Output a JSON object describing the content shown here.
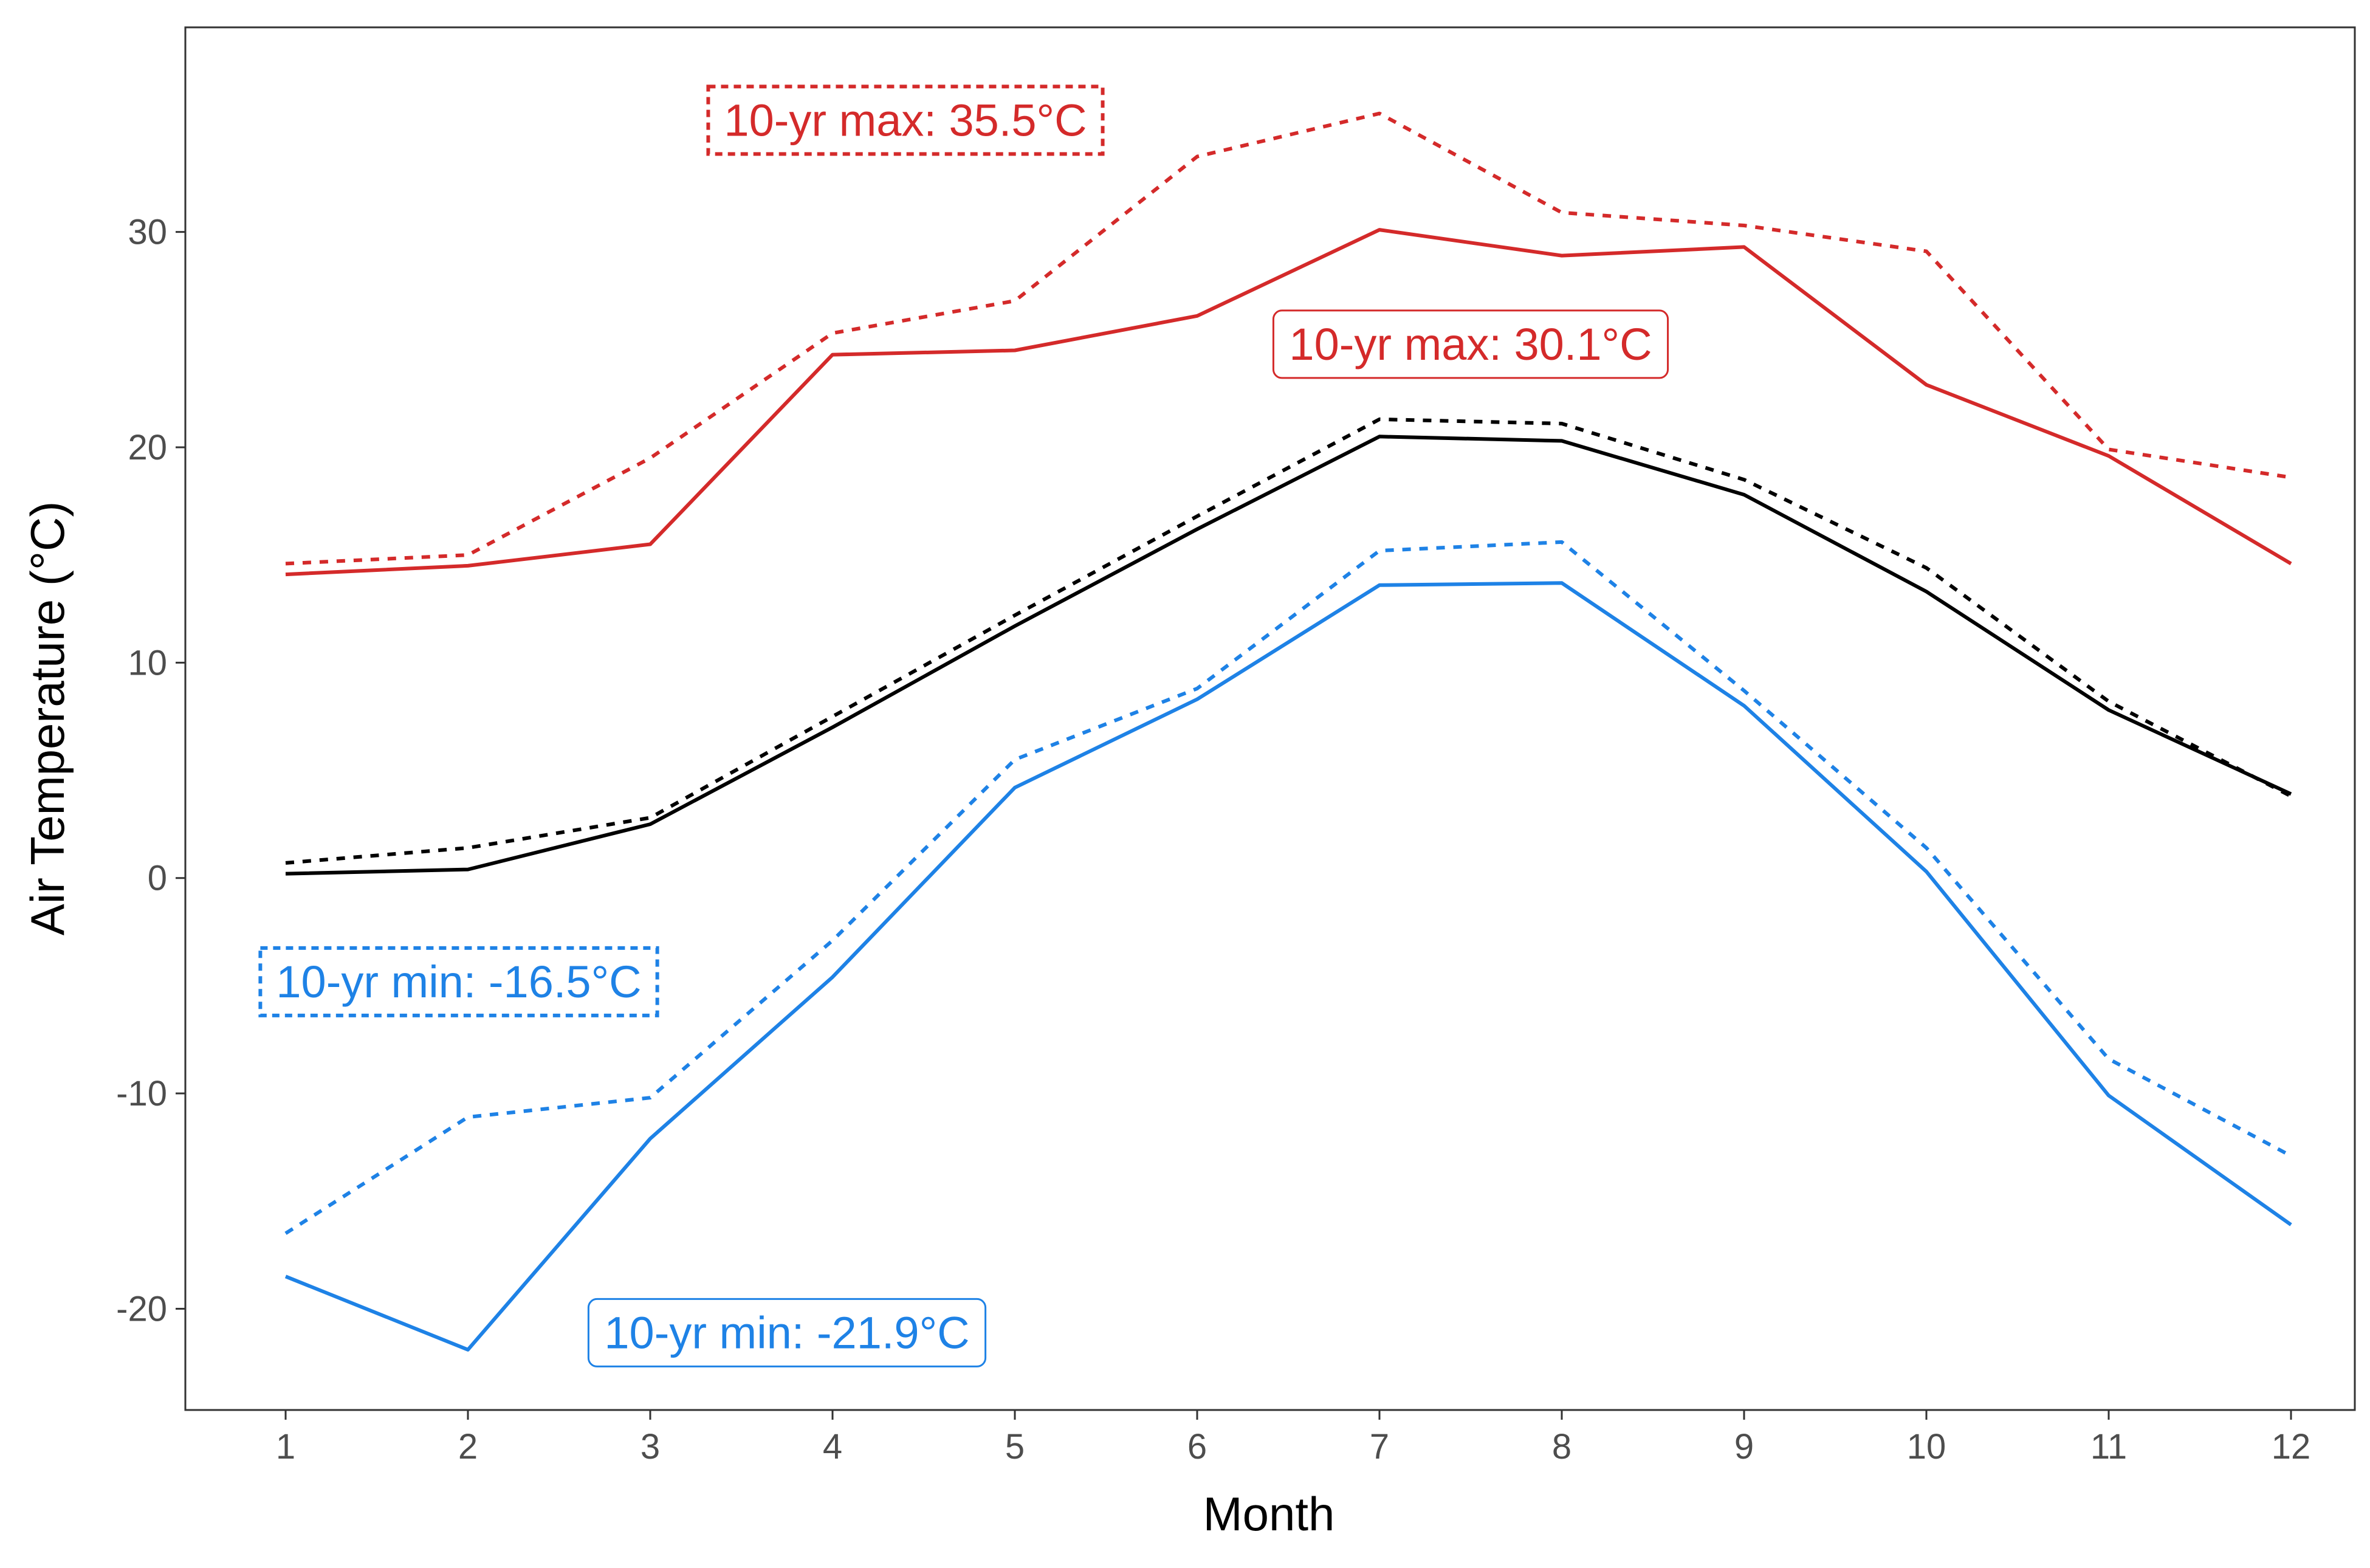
{
  "chart_data": {
    "type": "line",
    "xlabel": "Month",
    "ylabel": "Air Temperature (°C)",
    "xlim": [
      0.45,
      12.35
    ],
    "ylim": [
      -24.7,
      39.5
    ],
    "x_ticks": [
      1,
      2,
      3,
      4,
      5,
      6,
      7,
      8,
      9,
      10,
      11,
      12
    ],
    "y_ticks": [
      -20,
      -10,
      0,
      10,
      20,
      30
    ],
    "grid": false,
    "x": [
      1,
      2,
      3,
      4,
      5,
      6,
      7,
      8,
      9,
      10,
      11,
      12
    ],
    "series": [
      {
        "color": "#d42a2a",
        "dash": "dotted",
        "values": [
          14.6,
          15.0,
          19.5,
          25.3,
          26.8,
          33.5,
          35.5,
          30.9,
          30.3,
          29.1,
          19.9,
          18.6
        ]
      },
      {
        "color": "#d42a2a",
        "dash": "solid",
        "values": [
          14.1,
          14.5,
          15.5,
          24.3,
          24.5,
          26.1,
          30.1,
          28.9,
          29.3,
          22.9,
          19.6,
          14.6
        ]
      },
      {
        "color": "#000000",
        "dash": "dotted",
        "values": [
          0.7,
          1.4,
          2.8,
          7.5,
          12.2,
          16.8,
          21.3,
          21.1,
          18.5,
          14.4,
          8.2,
          3.8
        ]
      },
      {
        "color": "#000000",
        "dash": "solid",
        "values": [
          0.2,
          0.4,
          2.5,
          7.0,
          11.7,
          16.2,
          20.5,
          20.3,
          17.8,
          13.3,
          7.8,
          3.9
        ]
      },
      {
        "color": "#1e82e6",
        "dash": "dotted",
        "values": [
          -16.5,
          -11.1,
          -10.2,
          -2.9,
          5.5,
          8.8,
          15.2,
          15.6,
          8.7,
          1.4,
          -8.4,
          -12.9
        ]
      },
      {
        "color": "#1e82e6",
        "dash": "solid",
        "values": [
          -18.5,
          -21.9,
          -12.1,
          -4.6,
          4.2,
          8.3,
          13.6,
          13.7,
          8.0,
          0.3,
          -10.1,
          -16.1
        ]
      }
    ],
    "annotations": [
      {
        "text": "10-yr max: 35.5°C",
        "x": 4.4,
        "y": 35.2,
        "color": "#d42a2a",
        "border": "dashed"
      },
      {
        "text": "10-yr max: 30.1°C",
        "x": 7.5,
        "y": 24.8,
        "color": "#d42a2a",
        "border": "solid"
      },
      {
        "text": "10-yr min: -16.5°C",
        "x": 1.95,
        "y": -4.8,
        "color": "#1e82e6",
        "border": "dashed"
      },
      {
        "text": "10-yr min: -21.9°C",
        "x": 3.75,
        "y": -21.1,
        "color": "#1e82e6",
        "border": "solid"
      }
    ]
  }
}
